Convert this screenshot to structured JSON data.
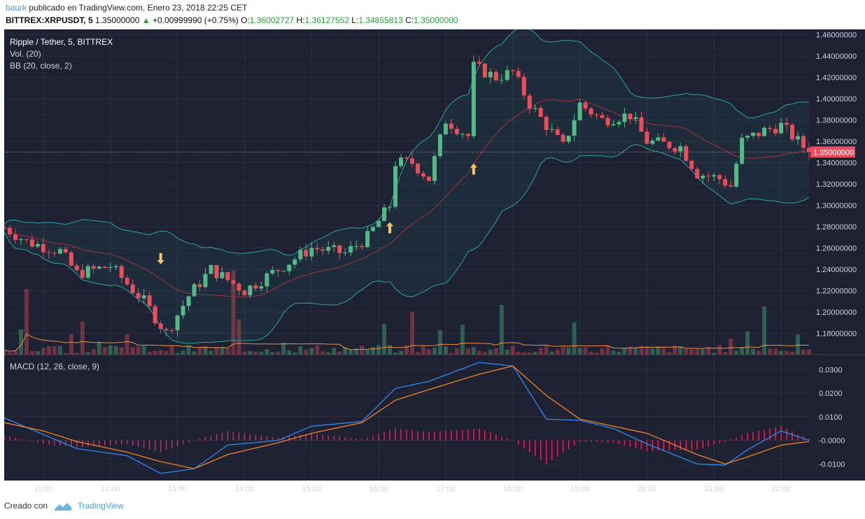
{
  "header": {
    "user": "baurk",
    "published": "publicado en TradingView.com, Enero 23, 2018 22:25 CET",
    "symbol": "BITTREX:XRPUSDT, 5",
    "last": "1.35000000",
    "change_arrow": "▲",
    "change": "+0.00999990 (+0.75%)",
    "o_label": "O:",
    "o_value": "1.36002727",
    "h_label": "H:",
    "h_value": "1.36127552",
    "l_label": "L:",
    "l_value": "1.34855813",
    "c_label": "C:",
    "c_value": "1.35000000"
  },
  "legend": {
    "title": "Ripple / Tether, 5, BITTREX",
    "vol": "Vol. (20)",
    "bb": "BB (20, close, 2)",
    "macd": "MACD (12, 26, close, 9)"
  },
  "price_axis": {
    "ticks": [
      "1.46000000",
      "1.44000000",
      "1.42000000",
      "1.40000000",
      "1.38000000",
      "1.36000000",
      "1.34000000",
      "1.32000000",
      "1.30000000",
      "1.28000000",
      "1.26000000",
      "1.24000000",
      "1.22000000",
      "1.20000000",
      "1.18000000"
    ],
    "last_price_label": "1.35000000"
  },
  "macd_axis": {
    "ticks": [
      "0.0300",
      "0.0200",
      "0.0100",
      "-0.0000",
      "-0.0100"
    ]
  },
  "time_axis": {
    "ticks": [
      "11:00",
      "12:00",
      "13:00",
      "14:00",
      "15:00",
      "16:00",
      "17:00",
      "18:00",
      "19:00",
      "20:00",
      "21:00",
      "22:00"
    ]
  },
  "footer": {
    "created": "Creado con",
    "brand": "TradingView"
  },
  "colors": {
    "background": "#1d2131",
    "grid": "#2c3142",
    "up": "#53b987",
    "down": "#eb4d5c",
    "bb_band": "#2aa5a1",
    "bb_basis": "#a8323e",
    "vol_ma": "#f0923a",
    "macd_line": "#2d8bf0",
    "signal_line": "#f58220",
    "histogram": "#e91e63",
    "arrow_marker": "#f7c66b",
    "last_price_line": "#eb4d5c"
  },
  "chart_data": {
    "type": "candlestick",
    "title": "Ripple / Tether, 5, BITTREX",
    "ylim": [
      1.16,
      1.465
    ],
    "macd_ylim": [
      -0.017,
      0.036
    ],
    "time_range": [
      "10:25",
      "22:25"
    ],
    "last_price": 1.35,
    "markers": [
      {
        "time": "12:45",
        "direction": "down",
        "price": 1.246
      },
      {
        "time": "16:10",
        "direction": "up",
        "price": 1.283
      },
      {
        "time": "17:25",
        "direction": "up",
        "price": 1.338
      }
    ],
    "price_keypoints": [
      {
        "time": "10:25",
        "close": 1.279
      },
      {
        "time": "10:45",
        "close": 1.266
      },
      {
        "time": "11:15",
        "close": 1.257
      },
      {
        "time": "11:30",
        "close": 1.236
      },
      {
        "time": "12:00",
        "close": 1.243
      },
      {
        "time": "12:30",
        "close": 1.21
      },
      {
        "time": "12:50",
        "close": 1.18
      },
      {
        "time": "13:10",
        "close": 1.215
      },
      {
        "time": "13:30",
        "close": 1.24
      },
      {
        "time": "14:00",
        "close": 1.22
      },
      {
        "time": "14:30",
        "close": 1.24
      },
      {
        "time": "15:00",
        "close": 1.26
      },
      {
        "time": "15:30",
        "close": 1.255
      },
      {
        "time": "15:50",
        "close": 1.27
      },
      {
        "time": "16:10",
        "close": 1.3
      },
      {
        "time": "16:15",
        "close": 1.34
      },
      {
        "time": "16:30",
        "close": 1.34
      },
      {
        "time": "16:45",
        "close": 1.325
      },
      {
        "time": "17:00",
        "close": 1.38
      },
      {
        "time": "17:20",
        "close": 1.365
      },
      {
        "time": "17:25",
        "close": 1.43
      },
      {
        "time": "17:45",
        "close": 1.42
      },
      {
        "time": "18:00",
        "close": 1.425
      },
      {
        "time": "18:15",
        "close": 1.395
      },
      {
        "time": "18:30",
        "close": 1.375
      },
      {
        "time": "18:45",
        "close": 1.355
      },
      {
        "time": "19:00",
        "close": 1.395
      },
      {
        "time": "19:20",
        "close": 1.38
      },
      {
        "time": "19:45",
        "close": 1.385
      },
      {
        "time": "20:00",
        "close": 1.36
      },
      {
        "time": "20:30",
        "close": 1.355
      },
      {
        "time": "20:45",
        "close": 1.33
      },
      {
        "time": "21:05",
        "close": 1.325
      },
      {
        "time": "21:15",
        "close": 1.318
      },
      {
        "time": "21:25",
        "close": 1.36
      },
      {
        "time": "21:45",
        "close": 1.37
      },
      {
        "time": "22:00",
        "close": 1.375
      },
      {
        "time": "22:25",
        "close": 1.35
      }
    ],
    "macd_keypoints": [
      {
        "time": "10:25",
        "macd": 0.0095,
        "signal": 0.0075
      },
      {
        "time": "11:00",
        "macd": 0.0025,
        "signal": 0.004
      },
      {
        "time": "11:30",
        "macd": -0.0035,
        "signal": -0.0005
      },
      {
        "time": "12:15",
        "macd": -0.0065,
        "signal": -0.005
      },
      {
        "time": "12:45",
        "macd": -0.014,
        "signal": -0.009
      },
      {
        "time": "13:15",
        "macd": -0.012,
        "signal": -0.012
      },
      {
        "time": "13:45",
        "macd": -0.002,
        "signal": -0.006
      },
      {
        "time": "14:30",
        "macd": 0.0,
        "signal": -0.001
      },
      {
        "time": "15:00",
        "macd": 0.006,
        "signal": 0.003
      },
      {
        "time": "15:45",
        "macd": 0.008,
        "signal": 0.0075
      },
      {
        "time": "16:15",
        "macd": 0.022,
        "signal": 0.017
      },
      {
        "time": "16:45",
        "macd": 0.025,
        "signal": 0.0215
      },
      {
        "time": "17:30",
        "macd": 0.033,
        "signal": 0.028
      },
      {
        "time": "18:00",
        "macd": 0.0315,
        "signal": 0.0315
      },
      {
        "time": "18:30",
        "macd": 0.009,
        "signal": 0.019
      },
      {
        "time": "19:00",
        "macd": 0.0085,
        "signal": 0.009
      },
      {
        "time": "19:30",
        "macd": 0.005,
        "signal": 0.006
      },
      {
        "time": "20:00",
        "macd": -0.0015,
        "signal": 0.003
      },
      {
        "time": "20:45",
        "macd": -0.01,
        "signal": -0.006
      },
      {
        "time": "21:10",
        "macd": -0.0105,
        "signal": -0.01
      },
      {
        "time": "21:30",
        "macd": -0.004,
        "signal": -0.007
      },
      {
        "time": "22:00",
        "macd": 0.004,
        "signal": -0.002
      },
      {
        "time": "22:25",
        "macd": 0.0,
        "signal": -0.0005
      }
    ]
  }
}
